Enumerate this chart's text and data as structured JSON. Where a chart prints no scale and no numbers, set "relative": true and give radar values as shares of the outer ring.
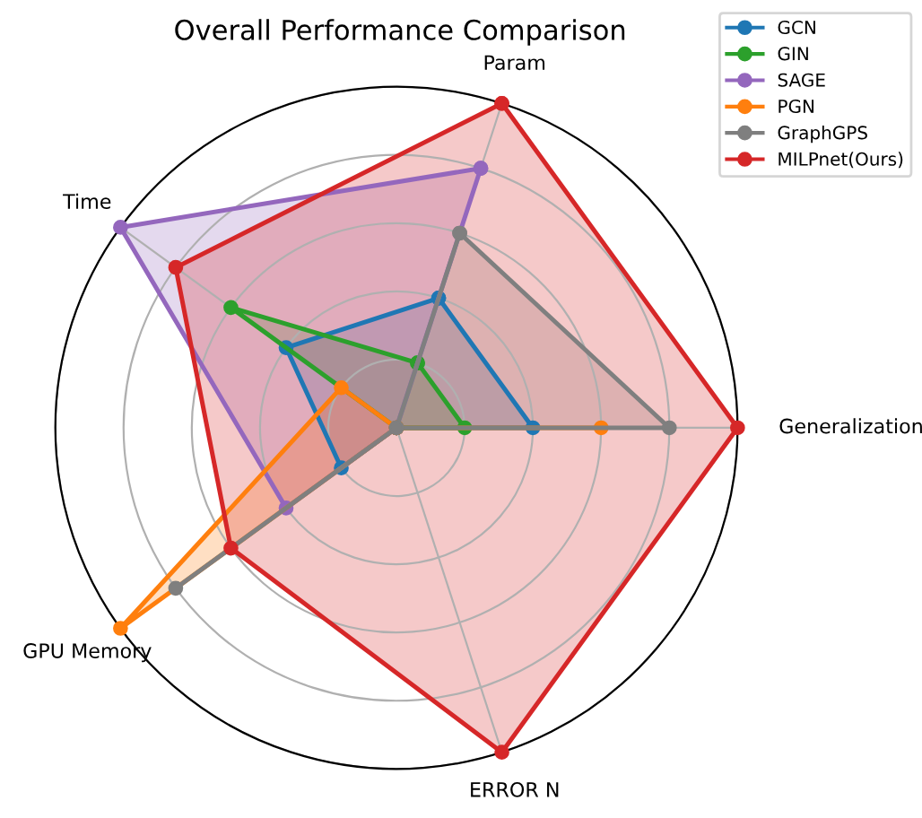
{
  "chart_data": {
    "type": "radar",
    "title": "Overall Performance Comparison",
    "relative": true,
    "grid": true,
    "legend": "top right",
    "marker": "circle",
    "line_style": "solid",
    "categories": [
      "Param",
      "Generalization",
      "ERROR N",
      "GPU Memory",
      "Time"
    ],
    "series": [
      {
        "name": "GCN",
        "color": "#1f77b4",
        "values": [
          0.4,
          0.4,
          0,
          0.2,
          0.4
        ]
      },
      {
        "name": "GIN",
        "color": "#2ca02c",
        "values": [
          0.2,
          0.2,
          0,
          0,
          0.6
        ]
      },
      {
        "name": "SAGE",
        "color": "#9467bd",
        "values": [
          0.8,
          0,
          0,
          0.4,
          1.0
        ]
      },
      {
        "name": "PGN",
        "color": "#ff7f0e",
        "values": [
          0,
          0.6,
          0,
          1.0,
          0.2
        ]
      },
      {
        "name": "GraphGPS",
        "color": "#7f7f7f",
        "values": [
          0.6,
          0.8,
          0,
          0.8,
          0
        ]
      },
      {
        "name": "MILPnet(Ours)",
        "color": "#d62728",
        "values": [
          1.0,
          1.0,
          1.0,
          0.6,
          0.8
        ]
      }
    ]
  }
}
